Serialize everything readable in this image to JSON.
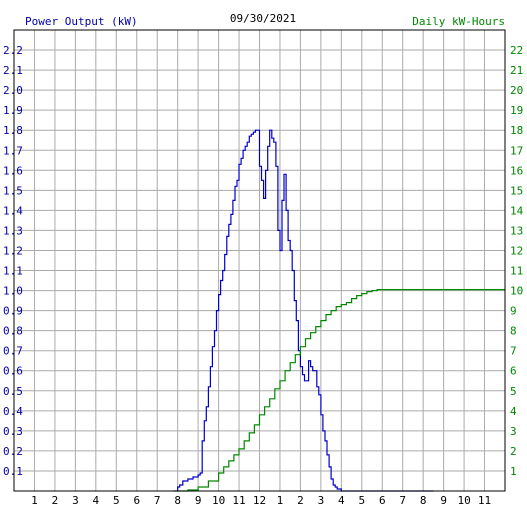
{
  "chart_data": {
    "type": "line",
    "title": "09/30/2021",
    "left_axis_label": "Power Output (kW)",
    "right_axis_label": "Daily kW-Hours",
    "x_tick_labels": [
      "1",
      "2",
      "3",
      "4",
      "5",
      "6",
      "7",
      "8",
      "9",
      "10",
      "11",
      "12",
      "1",
      "2",
      "3",
      "4",
      "5",
      "6",
      "7",
      "8",
      "9",
      "10",
      "11"
    ],
    "x_range_hours": [
      0,
      24
    ],
    "y_left_range": [
      0,
      2.3
    ],
    "y_left_ticks": [
      "0.1",
      "0.2",
      "0.3",
      "0.4",
      "0.5",
      "0.6",
      "0.7",
      "0.8",
      "0.9",
      "1.0",
      "1.1",
      "1.2",
      "1.3",
      "1.4",
      "1.5",
      "1.6",
      "1.7",
      "1.8",
      "1.9",
      "2.0",
      "2.1",
      "2.2"
    ],
    "y_right_range": [
      0,
      23
    ],
    "y_right_ticks": [
      "1",
      "2",
      "3",
      "4",
      "5",
      "6",
      "7",
      "8",
      "9",
      "10",
      "11",
      "12",
      "13",
      "14",
      "15",
      "16",
      "17",
      "18",
      "19",
      "20",
      "21",
      "22"
    ],
    "grid": true,
    "colors": {
      "power": "#0000cc",
      "energy": "#008800",
      "grid": "#aaaaaa",
      "left_axis_text": "#0000aa",
      "right_axis_text": "#008800",
      "title_text": "#000000",
      "x_tick_text": "#000000"
    },
    "series": [
      {
        "name": "Power Output (kW)",
        "axis": "left",
        "x": [
          7.8,
          8.0,
          8.1,
          8.25,
          8.5,
          8.75,
          9.0,
          9.1,
          9.2,
          9.3,
          9.4,
          9.5,
          9.6,
          9.7,
          9.8,
          9.9,
          10.0,
          10.1,
          10.2,
          10.3,
          10.4,
          10.5,
          10.6,
          10.7,
          10.8,
          10.9,
          11.0,
          11.1,
          11.2,
          11.3,
          11.4,
          11.5,
          11.6,
          11.7,
          11.8,
          11.9,
          12.0,
          12.1,
          12.2,
          12.3,
          12.4,
          12.5,
          12.6,
          12.7,
          12.8,
          12.9,
          13.0,
          13.1,
          13.2,
          13.3,
          13.4,
          13.5,
          13.6,
          13.7,
          13.8,
          13.9,
          14.0,
          14.1,
          14.2,
          14.3,
          14.4,
          14.5,
          14.6,
          14.7,
          14.8,
          14.9,
          15.0,
          15.1,
          15.2,
          15.3,
          15.4,
          15.5,
          15.6,
          15.7,
          15.8,
          15.9,
          16.0,
          16.1,
          16.2,
          16.3,
          16.4,
          16.5,
          16.6,
          16.7,
          16.8,
          16.9,
          17.0,
          17.1,
          17.2,
          17.3,
          17.4,
          17.5,
          17.6,
          17.7,
          17.8,
          17.9,
          18.0,
          18.1,
          18.2,
          18.3,
          18.4,
          18.5,
          18.6,
          18.7,
          18.8,
          18.9,
          19.0,
          19.25,
          19.5,
          19.75,
          20.0,
          20.2,
          20.5
        ],
        "y": [
          0.0,
          0.02,
          0.03,
          0.05,
          0.06,
          0.07,
          0.08,
          0.09,
          0.25,
          0.35,
          0.42,
          0.52,
          0.62,
          0.72,
          0.8,
          0.9,
          0.98,
          1.05,
          1.1,
          1.18,
          1.27,
          1.33,
          1.38,
          1.45,
          1.52,
          1.55,
          1.63,
          1.66,
          1.7,
          1.72,
          1.74,
          1.77,
          1.78,
          1.79,
          1.8,
          1.8,
          1.62,
          1.55,
          1.46,
          1.6,
          1.72,
          1.8,
          1.76,
          1.74,
          1.62,
          1.3,
          1.2,
          1.45,
          1.58,
          1.4,
          1.25,
          1.2,
          1.1,
          0.95,
          0.85,
          0.7,
          0.62,
          0.58,
          0.55,
          0.55,
          0.65,
          0.62,
          0.6,
          0.6,
          0.52,
          0.48,
          0.38,
          0.3,
          0.25,
          0.18,
          0.12,
          0.06,
          0.03,
          0.02,
          0.01,
          0.01,
          0.0,
          0.0,
          0.0,
          0.0,
          0.0,
          0.0,
          0.0,
          0.0,
          0.0,
          0.0,
          0.0,
          0.0,
          0.0,
          0.0,
          0.0,
          0.0,
          0.0,
          0.0,
          0.0,
          0.0,
          0.0,
          0.0,
          0.0,
          0.0,
          0.0,
          0.0,
          0.0,
          0.0,
          0.0,
          0.0,
          0.0,
          0.0,
          0.0,
          0.0,
          0.0,
          0.0,
          0.0
        ]
      },
      {
        "name": "Daily kW-Hours",
        "axis": "right",
        "x": [
          8.0,
          8.5,
          9.0,
          9.5,
          10.0,
          10.25,
          10.5,
          10.75,
          11.0,
          11.25,
          11.5,
          11.75,
          12.0,
          12.25,
          12.5,
          12.75,
          13.0,
          13.25,
          13.5,
          13.75,
          14.0,
          14.25,
          14.5,
          14.75,
          15.0,
          15.25,
          15.5,
          15.75,
          16.0,
          16.25,
          16.5,
          16.75,
          17.0,
          17.25,
          17.5,
          17.75,
          18.0,
          18.25,
          18.5,
          19.0,
          20.0,
          22.0,
          24.0
        ],
        "y": [
          0.0,
          0.05,
          0.2,
          0.5,
          0.9,
          1.2,
          1.5,
          1.8,
          2.1,
          2.5,
          2.9,
          3.3,
          3.8,
          4.2,
          4.6,
          5.1,
          5.5,
          6.0,
          6.4,
          6.8,
          7.2,
          7.6,
          7.9,
          8.2,
          8.5,
          8.8,
          9.0,
          9.2,
          9.3,
          9.4,
          9.6,
          9.75,
          9.85,
          9.95,
          10.0,
          10.05,
          10.05,
          10.05,
          10.05,
          10.05,
          10.05,
          10.05,
          10.05
        ]
      }
    ]
  }
}
